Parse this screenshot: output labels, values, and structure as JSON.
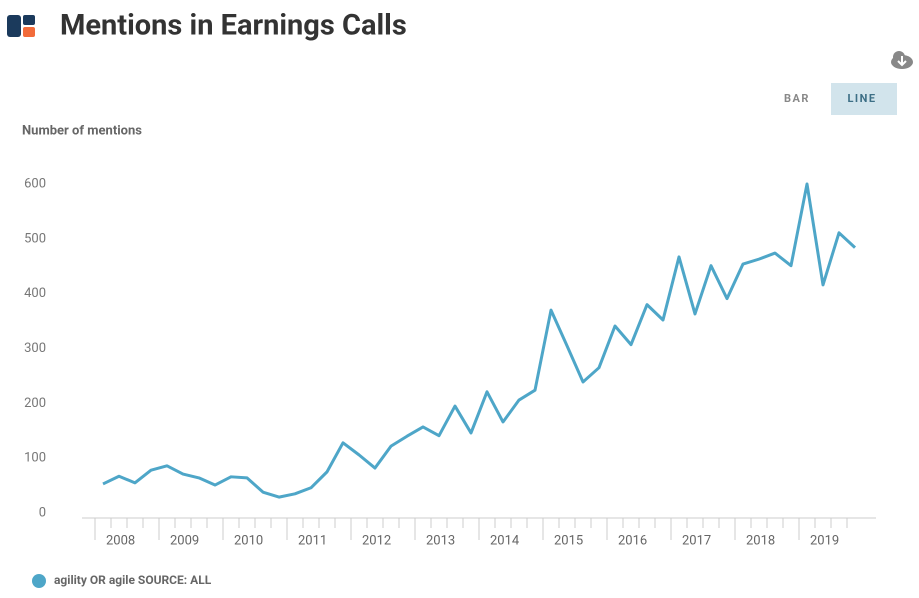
{
  "header": {
    "title": "Mentions in Earnings Calls"
  },
  "controls": {
    "buttons": [
      "BAR",
      "LINE"
    ],
    "active": 1
  },
  "chart_data": {
    "type": "line",
    "y_label": "Number of mentions",
    "categories": [
      "2008",
      null,
      null,
      null,
      "2009",
      null,
      null,
      null,
      "2010",
      null,
      null,
      null,
      "2011",
      null,
      null,
      null,
      "2012",
      null,
      null,
      null,
      "2013",
      null,
      null,
      null,
      "2014",
      null,
      null,
      null,
      "2015",
      null,
      null,
      null,
      "2016",
      null,
      null,
      null,
      "2017",
      null,
      null,
      null,
      "2018",
      null,
      null,
      null,
      "2019",
      null,
      null,
      null
    ],
    "series": [
      {
        "name": "agility OR agile SOURCE: ALL",
        "color": "#4ea6c8",
        "values": [
          53,
          67,
          55,
          78,
          86,
          71,
          64,
          51,
          66,
          64,
          38,
          29,
          35,
          46,
          75,
          128,
          106,
          82,
          122,
          140,
          157,
          141,
          195,
          146,
          221,
          166,
          206,
          224,
          370,
          305,
          239,
          265,
          341,
          307,
          380,
          352,
          467,
          363,
          451,
          391,
          454,
          463,
          474,
          451,
          600,
          416,
          511,
          484
        ]
      }
    ],
    "ylim": [
      0,
      600
    ],
    "yticks": [
      0,
      100,
      200,
      300,
      400,
      500,
      600
    ],
    "grid": false
  }
}
